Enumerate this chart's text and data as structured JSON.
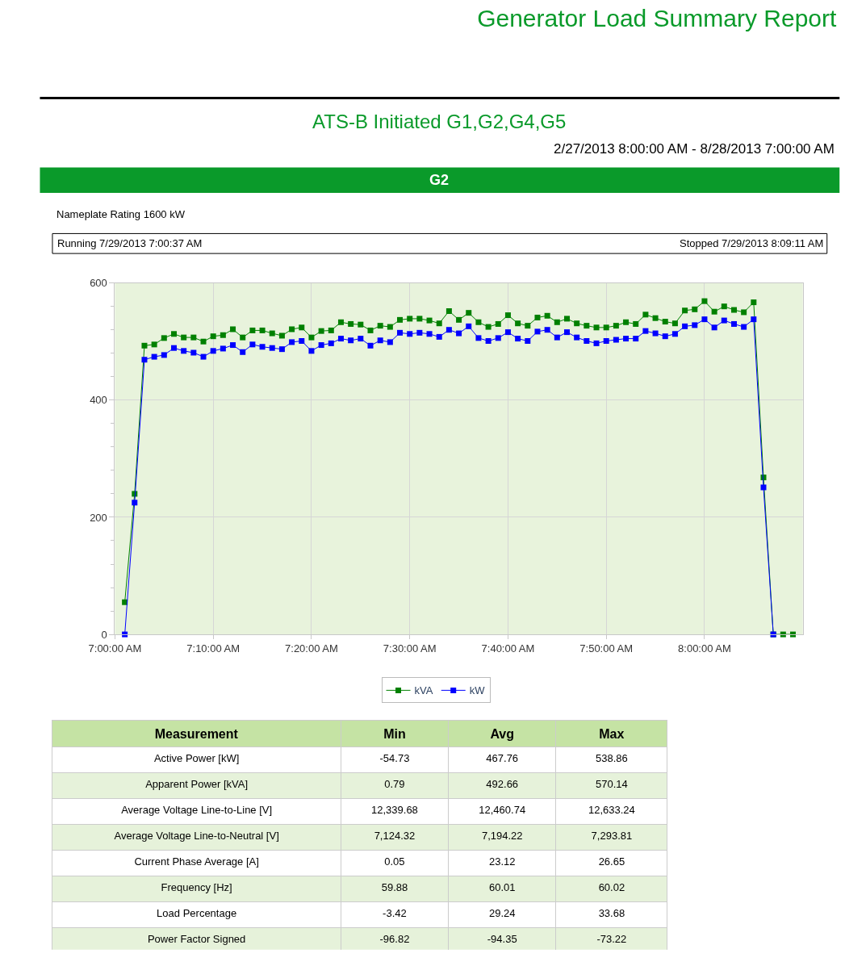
{
  "chart_data": [
    {
      "type": "line",
      "title": "Generator Load Summary Report",
      "subtitle": "ATS-B Initiated G1,G2,G4,G5",
      "annotations": [
        "2/27/2013 8:00:00 AM - 8/28/2013 7:00:00 AM",
        "G2",
        "Nameplate Rating 1600 kW",
        "Running 7/29/2013 7:00:37 AM",
        "Stopped 7/29/2013 8:09:11 AM"
      ],
      "x": [
        "2013-07-29T07:01",
        "2013-07-29T07:02",
        "2013-07-29T07:03",
        "2013-07-29T07:04",
        "2013-07-29T07:05",
        "2013-07-29T07:06",
        "2013-07-29T07:07",
        "2013-07-29T07:08",
        "2013-07-29T07:09",
        "2013-07-29T07:10",
        "2013-07-29T07:11",
        "2013-07-29T07:12",
        "2013-07-29T07:13",
        "2013-07-29T07:14",
        "2013-07-29T07:15",
        "2013-07-29T07:16",
        "2013-07-29T07:17",
        "2013-07-29T07:18",
        "2013-07-29T07:19",
        "2013-07-29T07:20",
        "2013-07-29T07:21",
        "2013-07-29T07:22",
        "2013-07-29T07:23",
        "2013-07-29T07:24",
        "2013-07-29T07:25",
        "2013-07-29T07:26",
        "2013-07-29T07:27",
        "2013-07-29T07:28",
        "2013-07-29T07:29",
        "2013-07-29T07:30",
        "2013-07-29T07:31",
        "2013-07-29T07:32",
        "2013-07-29T07:33",
        "2013-07-29T07:34",
        "2013-07-29T07:35",
        "2013-07-29T07:36",
        "2013-07-29T07:37",
        "2013-07-29T07:38",
        "2013-07-29T07:39",
        "2013-07-29T07:40",
        "2013-07-29T07:41",
        "2013-07-29T07:42",
        "2013-07-29T07:43",
        "2013-07-29T07:44",
        "2013-07-29T07:45",
        "2013-07-29T07:46",
        "2013-07-29T07:47",
        "2013-07-29T07:48",
        "2013-07-29T07:49",
        "2013-07-29T07:50",
        "2013-07-29T07:51",
        "2013-07-29T07:52",
        "2013-07-29T07:53",
        "2013-07-29T07:54",
        "2013-07-29T07:55",
        "2013-07-29T07:56",
        "2013-07-29T07:57",
        "2013-07-29T07:58",
        "2013-07-29T07:59",
        "2013-07-29T08:00",
        "2013-07-29T08:01",
        "2013-07-29T08:02",
        "2013-07-29T08:03",
        "2013-07-29T08:04",
        "2013-07-29T08:05",
        "2013-07-29T08:06",
        "2013-07-29T08:07",
        "2013-07-29T08:08",
        "2013-07-29T08:09"
      ],
      "series": [
        {
          "name": "kVA",
          "color": "#008000",
          "values": [
            55,
            240,
            493,
            495,
            506,
            513,
            507,
            507,
            500,
            509,
            511,
            521,
            507,
            519,
            519,
            514,
            510,
            521,
            524,
            507,
            518,
            519,
            533,
            530,
            529,
            519,
            527,
            525,
            537,
            539,
            539,
            536,
            531,
            552,
            537,
            549,
            533,
            525,
            530,
            545,
            531,
            527,
            541,
            544,
            533,
            539,
            531,
            527,
            524,
            524,
            527,
            533,
            530,
            546,
            540,
            534,
            531,
            553,
            555,
            569,
            551,
            560,
            554,
            550,
            567,
            268,
            0,
            0,
            0
          ]
        },
        {
          "name": "kW",
          "color": "#0000ff",
          "values": [
            0,
            225,
            469,
            474,
            477,
            489,
            484,
            481,
            474,
            484,
            488,
            494,
            482,
            495,
            491,
            489,
            487,
            499,
            501,
            484,
            494,
            497,
            505,
            502,
            505,
            493,
            502,
            499,
            515,
            513,
            515,
            513,
            508,
            520,
            514,
            526,
            506,
            501,
            506,
            516,
            505,
            501,
            517,
            520,
            507,
            516,
            507,
            501,
            497,
            501,
            503,
            505,
            505,
            518,
            514,
            509,
            513,
            526,
            528,
            538,
            524,
            536,
            530,
            525,
            538,
            251,
            0,
            null,
            null
          ]
        }
      ],
      "xlim": [
        "2013-07-29T07:00",
        "2013-07-29T08:10"
      ],
      "xticks": [
        {
          "value": "2013-07-29T07:00",
          "label": "7:00:00 AM"
        },
        {
          "value": "2013-07-29T07:10",
          "label": "7:10:00 AM"
        },
        {
          "value": "2013-07-29T07:20",
          "label": "7:20:00 AM"
        },
        {
          "value": "2013-07-29T07:30",
          "label": "7:30:00 AM"
        },
        {
          "value": "2013-07-29T07:40",
          "label": "7:40:00 AM"
        },
        {
          "value": "2013-07-29T07:50",
          "label": "7:50:00 AM"
        },
        {
          "value": "2013-07-29T08:00",
          "label": "8:00:00 AM"
        }
      ],
      "ylim": [
        0,
        600
      ],
      "yticks": [
        0,
        {
          "value": 40,
          "label": null
        },
        {
          "value": 80,
          "label": null
        },
        {
          "value": 120,
          "label": null
        },
        {
          "value": 160,
          "label": null
        },
        200,
        {
          "value": 240,
          "label": null
        },
        {
          "value": 280,
          "label": null
        },
        {
          "value": 320,
          "label": null
        },
        {
          "value": 360,
          "label": null
        },
        400,
        {
          "value": 440,
          "label": null
        },
        {
          "value": 480,
          "label": null
        },
        {
          "value": 520,
          "label": null
        },
        {
          "value": 560,
          "label": null
        },
        600
      ],
      "grid": true,
      "legend": "bottom",
      "marker": "square",
      "line_style": "solid"
    },
    {
      "type": "other",
      "annotations": [
        "Measurement",
        "Min",
        "Avg",
        "Max",
        "Active Power [kW]",
        "-54.73",
        "467.76",
        "538.86",
        "Apparent Power [kVA]",
        "0.79",
        "492.66",
        "570.14",
        "Average Voltage Line-to-Line [V]",
        "12,339.68",
        "12,460.74",
        "12,633.24",
        "Average Voltage Line-to-Neutral [V]",
        "7,124.32",
        "7,194.22",
        "7,293.81",
        "Current Phase Average [A]",
        "0.05",
        "23.12",
        "26.65",
        "Frequency [Hz]",
        "59.88",
        "60.01",
        "60.02",
        "Load Percentage",
        "-3.42",
        "29.24",
        "33.68",
        "Power Factor Signed",
        "-96.82",
        "-94.35",
        "-73.22"
      ]
    }
  ]
}
